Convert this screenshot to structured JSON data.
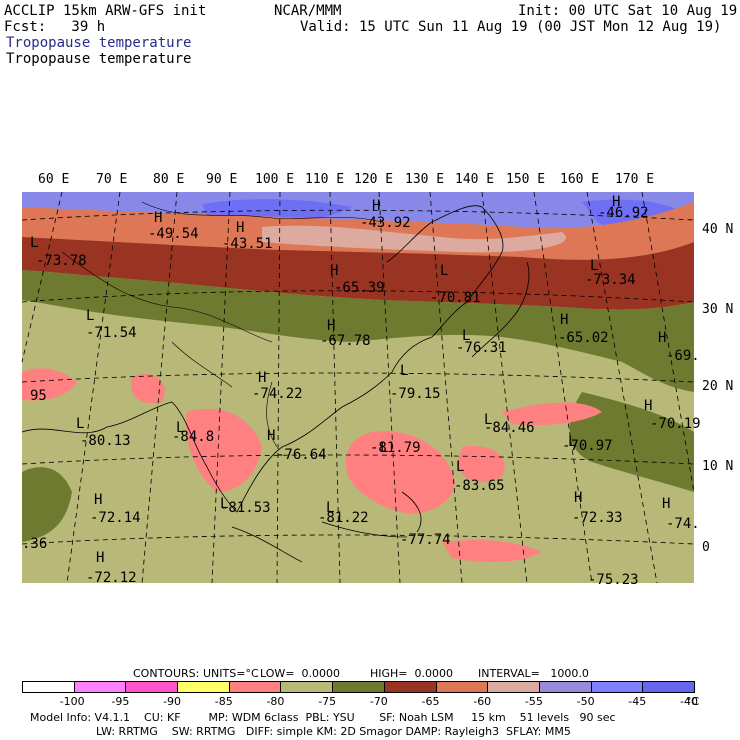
{
  "header": {
    "model": "ACCLIP 15km ARW-GFS init",
    "fcst": "Fcst:   39 h",
    "center": "NCAR/MMM",
    "init": "Init: 00 UTC Sat 10 Aug 19",
    "valid": "Valid: 15 UTC Sun 11 Aug 19 (00 JST Mon 12 Aug 19)",
    "field_title": "Tropopause temperature",
    "field_title_2": "Tropopause temperature"
  },
  "lon_labels": [
    "60 E",
    "70 E",
    "80 E",
    "90 E",
    "100 E",
    "110 E",
    "120 E",
    "130 E",
    "140 E",
    "150 E",
    "160 E",
    "170 E"
  ],
  "lat_labels": [
    "40 N",
    "30 N",
    "20 N",
    "10 N",
    "0"
  ],
  "map_labels": [
    {
      "t": "H",
      "id": "h1"
    },
    {
      "t": "-49.54",
      "id": "v1"
    },
    {
      "t": "H",
      "id": "h2"
    },
    {
      "t": "-43.51",
      "id": "v2"
    },
    {
      "t": "H",
      "id": "h3"
    },
    {
      "t": "-43.92",
      "id": "v3"
    },
    {
      "t": "H",
      "id": "h4"
    },
    {
      "t": "-46.92",
      "id": "v4"
    },
    {
      "t": "L",
      "id": "l1"
    },
    {
      "t": "-73.78",
      "id": "v5"
    },
    {
      "t": "H",
      "id": "h5"
    },
    {
      "t": "-65.39",
      "id": "v6"
    },
    {
      "t": "L",
      "id": "l2"
    },
    {
      "t": "-70.81",
      "id": "v7"
    },
    {
      "t": "L",
      "id": "l3"
    },
    {
      "t": "-73.34",
      "id": "v8"
    },
    {
      "t": "L",
      "id": "l4"
    },
    {
      "t": "-71.54",
      "id": "v9"
    },
    {
      "t": "H",
      "id": "h6"
    },
    {
      "t": "-67.78",
      "id": "v10"
    },
    {
      "t": "L",
      "id": "l5"
    },
    {
      "t": "-76.31",
      "id": "v11"
    },
    {
      "t": "H",
      "id": "h7"
    },
    {
      "t": "-65.02",
      "id": "v12"
    },
    {
      "t": "H",
      "id": "h8"
    },
    {
      "t": "-69.",
      "id": "v13"
    },
    {
      "t": "H",
      "id": "h9"
    },
    {
      "t": "-74.22",
      "id": "v14"
    },
    {
      "t": "L",
      "id": "l6"
    },
    {
      "t": "-79.15",
      "id": "v15"
    },
    {
      "t": "95",
      "id": "v16"
    },
    {
      "t": "L",
      "id": "l7"
    },
    {
      "t": "-80.13",
      "id": "v17"
    },
    {
      "t": "L",
      "id": "l8"
    },
    {
      "t": "-84.8",
      "id": "v18"
    },
    {
      "t": "H",
      "id": "h10"
    },
    {
      "t": "-76.64",
      "id": "v19"
    },
    {
      "t": "L",
      "id": "l9"
    },
    {
      "t": "-81.79",
      "id": "v20"
    },
    {
      "t": "L",
      "id": "l10"
    },
    {
      "t": "-84.46",
      "id": "v21"
    },
    {
      "t": "H",
      "id": "h11"
    },
    {
      "t": "-70.19",
      "id": "v22"
    },
    {
      "t": "L",
      "id": "l11"
    },
    {
      "t": "-70.97",
      "id": "v23"
    },
    {
      "t": "L",
      "id": "l12"
    },
    {
      "t": "-83.65",
      "id": "v24"
    },
    {
      "t": "H",
      "id": "h12"
    },
    {
      "t": "-72.14",
      "id": "v25"
    },
    {
      "t": "L",
      "id": "l13"
    },
    {
      "t": "-81.53",
      "id": "v26"
    },
    {
      "t": "L",
      "id": "l14"
    },
    {
      "t": "-81.22",
      "id": "v27"
    },
    {
      "t": "-77.74",
      "id": "v28"
    },
    {
      "t": "H",
      "id": "h13"
    },
    {
      "t": "-72.33",
      "id": "v29"
    },
    {
      "t": "H",
      "id": "h14"
    },
    {
      "t": "-74.",
      "id": "v30"
    },
    {
      "t": ".36",
      "id": "v31"
    },
    {
      "t": "H",
      "id": "h15"
    },
    {
      "t": "-72.12",
      "id": "v32"
    },
    {
      "t": "-75.23",
      "id": "v33"
    }
  ],
  "contour_info": {
    "contours": "CONTOURS:",
    "units": "UNITS=°C",
    "low": "LOW=  0.0000",
    "high": "HIGH=  0.0000",
    "interval": "INTERVAL=   1000.0"
  },
  "colorbar": {
    "colors": [
      "#ffffff",
      "#ff80ff",
      "#ff55cc",
      "#ffff66",
      "#ff8080",
      "#b8b878",
      "#6e7a30",
      "#993322",
      "#dd7755",
      "#ddaaa0",
      "#9a88dd",
      "#7f7fff",
      "#6666ee"
    ],
    "labels": [
      "-100",
      "-95",
      "-90",
      "-85",
      "-80",
      "-75",
      "-70",
      "-65",
      "-60",
      "-55",
      "-50",
      "-45",
      "-40"
    ],
    "unit": "°C"
  },
  "footer": {
    "line1": "Model Info: V4.1.1    CU: KF        MP: WDM 6class  PBL: YSU       SF: Noah LSM     15 km    51 levels   90 sec",
    "line2": "LW: RRTMG    SW: RRTMG   DIFF: simple KM: 2D Smagor DAMP: Rayleigh3  SFLAY: MM5"
  }
}
